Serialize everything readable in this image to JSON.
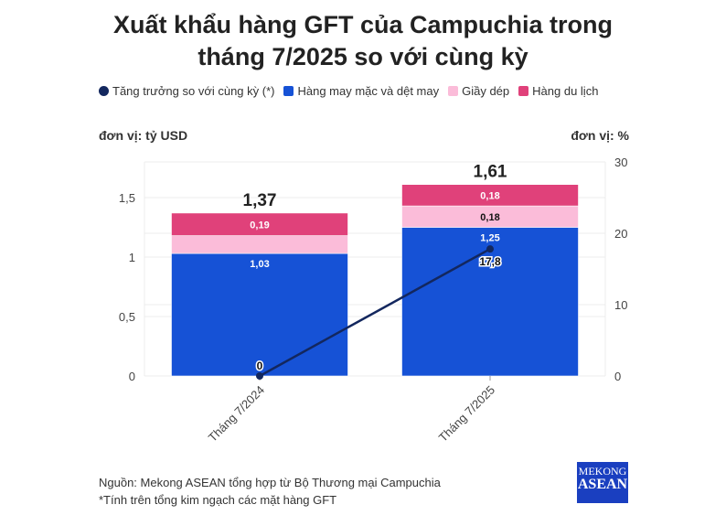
{
  "title_line1": "Xuất khẩu hàng GFT của Campuchia trong",
  "title_line2": "tháng 7/2025 so với cùng kỳ",
  "left_unit": "đơn vị: tỷ USD",
  "right_unit": "đơn vị: %",
  "source": "Nguồn: Mekong ASEAN tổng hợp từ Bộ Thương mại Campuchia",
  "note": "*Tính trên tổng kim ngạch các mặt hàng GFT",
  "logo": "MEKONG ASEAN",
  "chart_data": {
    "type": "bar",
    "stacked": true,
    "categories": [
      "Tháng 7/2024",
      "Tháng 7/2025"
    ],
    "series": [
      {
        "name": "Hàng may mặc và dệt may",
        "values": [
          1.03,
          1.25
        ],
        "color": "#1652d6",
        "labels": [
          "1,03",
          "1,25"
        ]
      },
      {
        "name": "Giầy dép",
        "values": [
          0.15,
          0.18
        ],
        "color": "#fbbcd9",
        "labels": [
          "",
          "0,18"
        ]
      },
      {
        "name": "Hàng du lịch",
        "values": [
          0.19,
          0.18
        ],
        "color": "#e0417a",
        "labels": [
          "0,19",
          "0,18"
        ]
      }
    ],
    "totals": [
      "1,37",
      "1,61"
    ],
    "line": {
      "name": "Tăng trưởng so với cùng kỳ (*)",
      "values": [
        0,
        17.8
      ],
      "labels": [
        "0",
        "17,8"
      ],
      "color": "#13275e",
      "axis": "right"
    },
    "legend_order": [
      "Tăng trưởng so với cùng kỳ (*)",
      "Hàng may mặc và dệt may",
      "Giầy dép",
      "Hàng du lịch"
    ],
    "legend_colors": [
      "#13275e",
      "#1652d6",
      "#fbbcd9",
      "#e0417a"
    ],
    "y_left": {
      "ylim": [
        0,
        1.8
      ],
      "ticks": [
        0,
        0.5,
        1,
        1.5
      ],
      "tick_labels": [
        "0",
        "0,5",
        "1",
        "1,5"
      ]
    },
    "y_right": {
      "ylim": [
        0,
        30
      ],
      "ticks": [
        0,
        10,
        20,
        30
      ],
      "tick_labels": [
        "0",
        "10",
        "20",
        "30"
      ]
    },
    "grid": true,
    "legend_position": "top"
  }
}
